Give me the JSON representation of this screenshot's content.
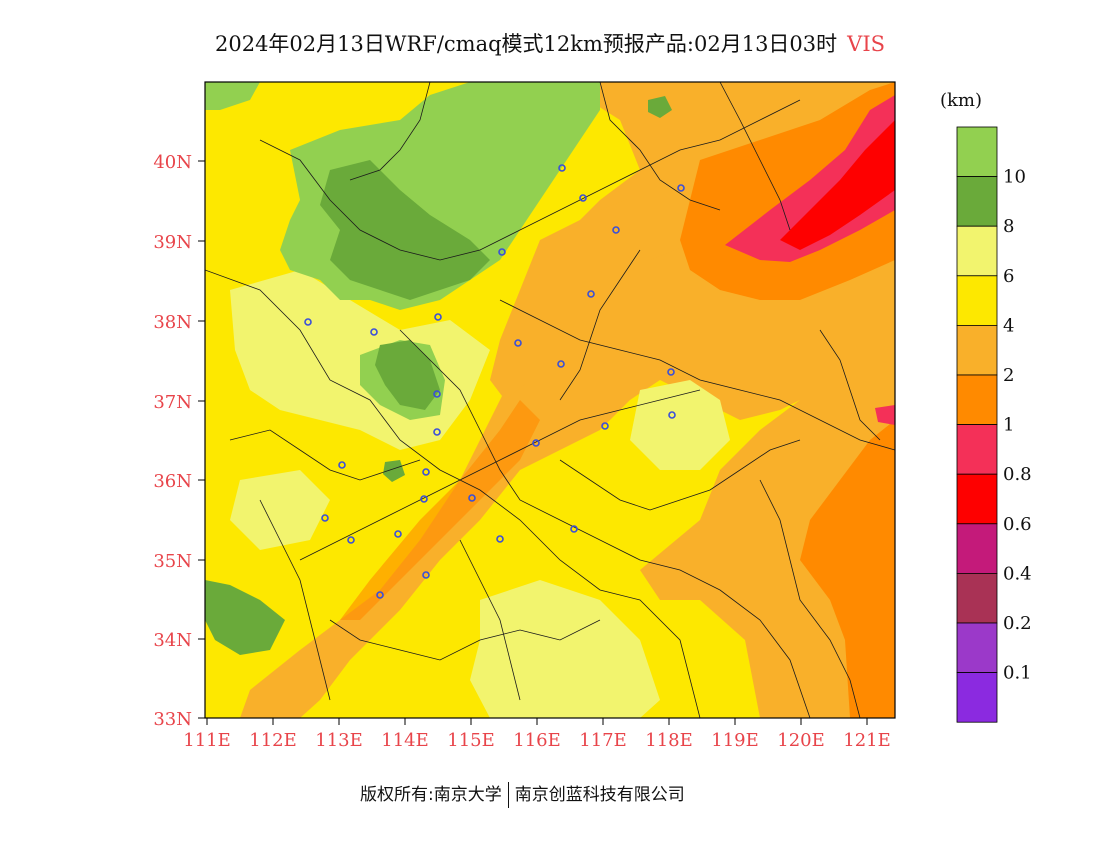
{
  "title": {
    "main": "2024年02月13日WRF/cmaq模式12km预报产品:02月13日03时",
    "variable": "VIS"
  },
  "colorbar": {
    "unit": "(km)",
    "levels": [
      {
        "label": "10",
        "color": "#92d050"
      },
      {
        "label": "8",
        "color": "#6aaa3a"
      },
      {
        "label": "6",
        "color": "#f2f46e"
      },
      {
        "label": "4",
        "color": "#fde800"
      },
      {
        "label": "2",
        "color": "#f9b02a"
      },
      {
        "label": "1",
        "color": "#ff8a00"
      },
      {
        "label": "0.8",
        "color": "#f43058"
      },
      {
        "label": "0.6",
        "color": "#fe0000"
      },
      {
        "label": "0.4",
        "color": "#c41a7a"
      },
      {
        "label": "0.2",
        "color": "#a93255"
      },
      {
        "label": "0.1",
        "color": "#9b39c9"
      },
      {
        "label": "",
        "color": "#8b2ae0"
      }
    ]
  },
  "axes": {
    "latitude_labels": [
      "40N",
      "39N",
      "38N",
      "37N",
      "36N",
      "35N",
      "34N",
      "33N"
    ],
    "longitude_labels": [
      "111E",
      "112E",
      "113E",
      "114E",
      "115E",
      "116E",
      "117E",
      "118E",
      "119E",
      "120E",
      "121E"
    ],
    "label_color": "#e8444a"
  },
  "footer": {
    "left": "版权所有:南京大学",
    "right": "南京创蓝科技有限公司"
  }
}
